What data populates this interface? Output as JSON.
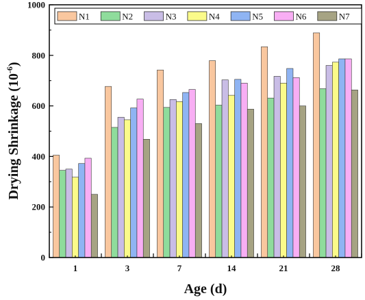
{
  "chart_data": {
    "type": "bar",
    "title": "",
    "xlabel": "Age (d)",
    "ylabel_main": "Drying Shrinkage (10",
    "ylabel_exp": "-6",
    "ylabel_close": ")",
    "categories": [
      "1",
      "3",
      "7",
      "14",
      "21",
      "28"
    ],
    "ylim": [
      0,
      1000
    ],
    "yticks": [
      "0",
      "200",
      "400",
      "600",
      "800",
      "1000"
    ],
    "legend_position": "top-right",
    "grid": false,
    "series": [
      {
        "name": "N1",
        "color": "#f9c79f",
        "values": [
          405,
          677,
          742,
          779,
          834,
          889
        ]
      },
      {
        "name": "N2",
        "color": "#8fdc9c",
        "values": [
          345,
          515,
          594,
          603,
          631,
          668
        ]
      },
      {
        "name": "N3",
        "color": "#c9bde6",
        "values": [
          350,
          555,
          625,
          703,
          717,
          760
        ]
      },
      {
        "name": "N4",
        "color": "#fbfb8a",
        "values": [
          318,
          545,
          617,
          642,
          690,
          773
        ]
      },
      {
        "name": "N5",
        "color": "#8fb4f3",
        "values": [
          372,
          592,
          653,
          705,
          748,
          786
        ]
      },
      {
        "name": "N6",
        "color": "#f8aef4",
        "values": [
          393,
          627,
          665,
          690,
          712,
          786
        ]
      },
      {
        "name": "N7",
        "color": "#a6a383",
        "values": [
          250,
          468,
          530,
          587,
          600,
          663
        ]
      }
    ]
  }
}
